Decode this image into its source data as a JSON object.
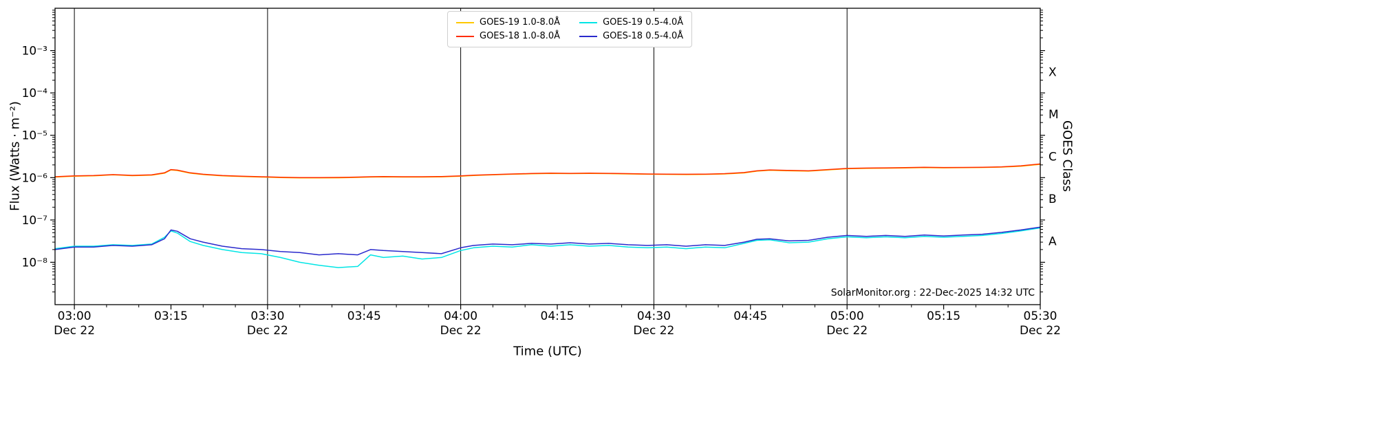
{
  "figure": {
    "watermark": "SolarMonitor.org : 22-Dec-2025 14:32 UTC",
    "background": "#ffffff"
  },
  "chart_data": {
    "type": "line",
    "title": "",
    "xlabel": "Time (UTC)",
    "ylabel": "Flux (Watts · m⁻²)",
    "ylabel_right": "GOES Class",
    "x_unit": "minutes after 03:00 UTC on Dec 22",
    "xlim": [
      -3,
      150
    ],
    "ylim": [
      1e-09,
      0.01
    ],
    "yscale": "log",
    "grid": "vertical black lines every 30 minutes",
    "legend_position": "top-center",
    "x_gridlines": [
      0,
      30,
      60,
      90,
      120,
      150
    ],
    "x_minor_step_minutes": 5,
    "x_ticks": [
      {
        "t": 0,
        "label": "03:00",
        "date": "Dec 22"
      },
      {
        "t": 15,
        "label": "03:15"
      },
      {
        "t": 30,
        "label": "03:30",
        "date": "Dec 22"
      },
      {
        "t": 45,
        "label": "03:45"
      },
      {
        "t": 60,
        "label": "04:00",
        "date": "Dec 22"
      },
      {
        "t": 75,
        "label": "04:15"
      },
      {
        "t": 90,
        "label": "04:30",
        "date": "Dec 22"
      },
      {
        "t": 105,
        "label": "04:45"
      },
      {
        "t": 120,
        "label": "05:00",
        "date": "Dec 22"
      },
      {
        "t": 135,
        "label": "05:15"
      },
      {
        "t": 150,
        "label": "05:30",
        "date": "Dec 22"
      }
    ],
    "y_ticks": [
      {
        "exp": -3,
        "label": "10⁻³"
      },
      {
        "exp": -4,
        "label": "10⁻⁴"
      },
      {
        "exp": -5,
        "label": "10⁻⁵"
      },
      {
        "exp": -6,
        "label": "10⁻⁶"
      },
      {
        "exp": -7,
        "label": "10⁻⁷"
      },
      {
        "exp": -8,
        "label": "10⁻⁸"
      }
    ],
    "goes_classes": [
      {
        "label": "X",
        "flux": 0.000316
      },
      {
        "label": "M",
        "flux": 3.16e-05
      },
      {
        "label": "C",
        "flux": 3.16e-06
      },
      {
        "label": "B",
        "flux": 3.16e-07
      },
      {
        "label": "A",
        "flux": 3.16e-08
      }
    ],
    "x_minutes": [
      -3,
      0,
      3,
      6,
      9,
      12,
      14,
      15,
      16,
      18,
      20,
      23,
      26,
      29,
      32,
      35,
      38,
      41,
      44,
      46,
      48,
      51,
      54,
      57,
      60,
      62,
      65,
      68,
      71,
      74,
      77,
      80,
      83,
      86,
      89,
      92,
      95,
      98,
      101,
      104,
      106,
      108,
      111,
      114,
      117,
      120,
      123,
      126,
      129,
      132,
      135,
      138,
      141,
      144,
      147,
      150
    ],
    "series": [
      {
        "name": "GOES-19 1.0-8.0Å",
        "color": "#ffc800",
        "values": [
          1.03e-06,
          1.08e-06,
          1.1e-06,
          1.16e-06,
          1.11e-06,
          1.14e-06,
          1.27e-06,
          1.52e-06,
          1.47e-06,
          1.27e-06,
          1.18e-06,
          1.1e-06,
          1.06e-06,
          1.03e-06,
          1e-06,
          9.8e-07,
          9.8e-07,
          9.9e-07,
          1.01e-06,
          1.03e-06,
          1.04e-06,
          1.03e-06,
          1.03e-06,
          1.04e-06,
          1.08e-06,
          1.12e-06,
          1.16e-06,
          1.2e-06,
          1.23e-06,
          1.25e-06,
          1.24e-06,
          1.25e-06,
          1.24e-06,
          1.22e-06,
          1.2e-06,
          1.19e-06,
          1.18e-06,
          1.19e-06,
          1.22e-06,
          1.29e-06,
          1.42e-06,
          1.49e-06,
          1.45e-06,
          1.42e-06,
          1.52e-06,
          1.62e-06,
          1.65e-06,
          1.67e-06,
          1.69e-06,
          1.72e-06,
          1.7e-06,
          1.71e-06,
          1.73e-06,
          1.77e-06,
          1.86e-06,
          2.06e-06
        ]
      },
      {
        "name": "GOES-18 1.0-8.0Å",
        "color": "#ff2d00",
        "values": [
          1.05e-06,
          1.1e-06,
          1.12e-06,
          1.18e-06,
          1.13e-06,
          1.16e-06,
          1.3e-06,
          1.55e-06,
          1.5e-06,
          1.3e-06,
          1.2e-06,
          1.12e-06,
          1.08e-06,
          1.05e-06,
          1.02e-06,
          1e-06,
          1e-06,
          1.01e-06,
          1.03e-06,
          1.05e-06,
          1.06e-06,
          1.05e-06,
          1.05e-06,
          1.06e-06,
          1.1e-06,
          1.14e-06,
          1.18e-06,
          1.22e-06,
          1.25e-06,
          1.28e-06,
          1.26e-06,
          1.28e-06,
          1.26e-06,
          1.24e-06,
          1.22e-06,
          1.21e-06,
          1.2e-06,
          1.21e-06,
          1.24e-06,
          1.32e-06,
          1.45e-06,
          1.52e-06,
          1.48e-06,
          1.45e-06,
          1.55e-06,
          1.65e-06,
          1.68e-06,
          1.7e-06,
          1.72e-06,
          1.75e-06,
          1.73e-06,
          1.74e-06,
          1.76e-06,
          1.8e-06,
          1.9e-06,
          2.1e-06
        ]
      },
      {
        "name": "GOES-19 0.5-4.0Å",
        "color": "#00e5e5",
        "values": [
          2.1e-08,
          2.4e-08,
          2.4e-08,
          2.6e-08,
          2.5e-08,
          2.7e-08,
          3.9e-08,
          5.5e-08,
          4.9e-08,
          3.1e-08,
          2.5e-08,
          2e-08,
          1.7e-08,
          1.6e-08,
          1.3e-08,
          1e-08,
          8.5e-09,
          7.5e-09,
          8e-09,
          1.5e-08,
          1.3e-08,
          1.4e-08,
          1.2e-08,
          1.3e-08,
          1.9e-08,
          2.2e-08,
          2.4e-08,
          2.3e-08,
          2.6e-08,
          2.4e-08,
          2.6e-08,
          2.4e-08,
          2.5e-08,
          2.3e-08,
          2.2e-08,
          2.3e-08,
          2.1e-08,
          2.3e-08,
          2.2e-08,
          2.8e-08,
          3.3e-08,
          3.4e-08,
          2.9e-08,
          3e-08,
          3.6e-08,
          4e-08,
          3.8e-08,
          4e-08,
          3.8e-08,
          4.1e-08,
          3.9e-08,
          4.1e-08,
          4.3e-08,
          4.8e-08,
          5.5e-08,
          6.5e-08
        ]
      },
      {
        "name": "GOES-18 0.5-4.0Å",
        "color": "#2929cc",
        "values": [
          2e-08,
          2.3e-08,
          2.3e-08,
          2.5e-08,
          2.4e-08,
          2.6e-08,
          3.6e-08,
          5.8e-08,
          5.4e-08,
          3.6e-08,
          3e-08,
          2.4e-08,
          2.1e-08,
          2e-08,
          1.8e-08,
          1.7e-08,
          1.5e-08,
          1.6e-08,
          1.5e-08,
          2e-08,
          1.9e-08,
          1.8e-08,
          1.7e-08,
          1.6e-08,
          2.2e-08,
          2.5e-08,
          2.7e-08,
          2.6e-08,
          2.8e-08,
          2.7e-08,
          2.9e-08,
          2.7e-08,
          2.8e-08,
          2.6e-08,
          2.5e-08,
          2.6e-08,
          2.4e-08,
          2.6e-08,
          2.5e-08,
          3e-08,
          3.5e-08,
          3.6e-08,
          3.2e-08,
          3.3e-08,
          3.9e-08,
          4.3e-08,
          4.1e-08,
          4.3e-08,
          4.1e-08,
          4.4e-08,
          4.2e-08,
          4.4e-08,
          4.6e-08,
          5.1e-08,
          5.8e-08,
          6.8e-08
        ]
      }
    ]
  }
}
